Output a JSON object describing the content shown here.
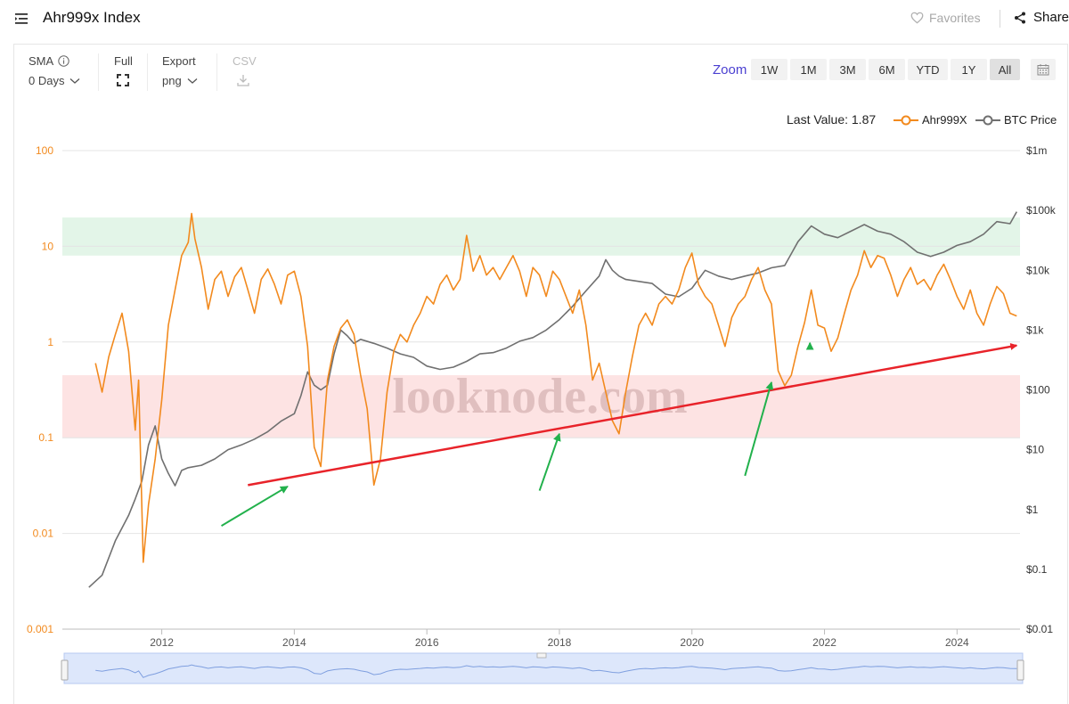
{
  "header": {
    "title": "Ahr999x Index",
    "favorites": "Favorites",
    "share": "Share"
  },
  "toolbar": {
    "sma_label": "SMA",
    "sma_value": "0 Days",
    "full_label": "Full",
    "export_label": "Export",
    "export_value": "png",
    "csv_label": "CSV",
    "zoom_label": "Zoom",
    "zoom_buttons": [
      "1W",
      "1M",
      "3M",
      "6M",
      "YTD",
      "1Y",
      "All"
    ],
    "zoom_active": "All"
  },
  "legend": {
    "last_value": "Last Value: 1.87"
  },
  "watermark": "looknode.com",
  "colors": {
    "ahr999x": "#f28a1e",
    "btc": "#707070",
    "top_zone": "#e3f5e8",
    "bottom_zone": "#fde3e3",
    "trendline": "#e8232a",
    "arrows": "#22b14c",
    "zoom_accent": "#4a3fd1"
  },
  "chart_data": {
    "type": "line",
    "title": "Ahr999x Index",
    "x_ticks": [
      "2012",
      "2014",
      "2016",
      "2018",
      "2020",
      "2022",
      "2024"
    ],
    "y_left_scale": "log",
    "y_left_ticks": [
      "100",
      "10",
      "1",
      "0.1",
      "0.01",
      "0.001"
    ],
    "y_left_range": [
      0.001,
      100
    ],
    "y_right_scale": "log",
    "y_right_ticks": [
      "$1m",
      "$100k",
      "$10k",
      "$1k",
      "$100",
      "$10",
      "$1",
      "$0.1",
      "$0.01"
    ],
    "y_right_range": [
      0.01,
      1000000
    ],
    "zones": [
      {
        "name": "top",
        "from": 8,
        "to": 20,
        "color": "#e3f5e8"
      },
      {
        "name": "bottom",
        "from": 0.1,
        "to": 0.45,
        "color": "#fde3e3"
      }
    ],
    "trendline": {
      "from": [
        "2013.3",
        0.032
      ],
      "to": [
        "2024.9",
        0.92
      ]
    },
    "arrows": [
      {
        "tail": [
          "2012.9",
          0.012
        ],
        "head": [
          "2013.9",
          0.031
        ]
      },
      {
        "tail": [
          "2017.7",
          0.028
        ],
        "head": [
          "2018.0",
          0.11
        ]
      },
      {
        "tail": [
          "2020.8",
          0.04
        ],
        "head": [
          "2021.2",
          0.38
        ]
      },
      {
        "tail": [
          "2021.78",
          0.85
        ],
        "head": [
          "2021.78",
          0.98
        ]
      }
    ],
    "series": [
      {
        "name": "Ahr999X",
        "axis": "left",
        "color": "#f28a1e",
        "last_value": 1.87,
        "points": [
          [
            "2011.0",
            0.6
          ],
          [
            "2011.1",
            0.3
          ],
          [
            "2011.2",
            0.7
          ],
          [
            "2011.3",
            1.2
          ],
          [
            "2011.4",
            2.0
          ],
          [
            "2011.5",
            0.8
          ],
          [
            "2011.6",
            0.12
          ],
          [
            "2011.65",
            0.4
          ],
          [
            "2011.72",
            0.005
          ],
          [
            "2011.8",
            0.02
          ],
          [
            "2011.9",
            0.06
          ],
          [
            "2012.0",
            0.25
          ],
          [
            "2012.1",
            1.5
          ],
          [
            "2012.2",
            3.5
          ],
          [
            "2012.3",
            8.0
          ],
          [
            "2012.4",
            11.0
          ],
          [
            "2012.45",
            22.0
          ],
          [
            "2012.5",
            12.0
          ],
          [
            "2012.6",
            6.0
          ],
          [
            "2012.7",
            2.2
          ],
          [
            "2012.8",
            4.5
          ],
          [
            "2012.9",
            5.5
          ],
          [
            "2013.0",
            3.0
          ],
          [
            "2013.1",
            4.8
          ],
          [
            "2013.2",
            6.0
          ],
          [
            "2013.3",
            3.5
          ],
          [
            "2013.4",
            2.0
          ],
          [
            "2013.5",
            4.5
          ],
          [
            "2013.6",
            5.8
          ],
          [
            "2013.7",
            4.0
          ],
          [
            "2013.8",
            2.5
          ],
          [
            "2013.9",
            5.0
          ],
          [
            "2014.0",
            5.5
          ],
          [
            "2014.1",
            3.0
          ],
          [
            "2014.2",
            0.9
          ],
          [
            "2014.3",
            0.08
          ],
          [
            "2014.4",
            0.05
          ],
          [
            "2014.5",
            0.4
          ],
          [
            "2014.6",
            0.9
          ],
          [
            "2014.7",
            1.4
          ],
          [
            "2014.8",
            1.7
          ],
          [
            "2014.9",
            1.2
          ],
          [
            "2015.0",
            0.45
          ],
          [
            "2015.1",
            0.2
          ],
          [
            "2015.2",
            0.032
          ],
          [
            "2015.3",
            0.06
          ],
          [
            "2015.4",
            0.3
          ],
          [
            "2015.5",
            0.8
          ],
          [
            "2015.6",
            1.2
          ],
          [
            "2015.7",
            1.0
          ],
          [
            "2015.8",
            1.5
          ],
          [
            "2015.9",
            2.0
          ],
          [
            "2016.0",
            3.0
          ],
          [
            "2016.1",
            2.5
          ],
          [
            "2016.2",
            4.0
          ],
          [
            "2016.3",
            5.0
          ],
          [
            "2016.4",
            3.5
          ],
          [
            "2016.5",
            4.5
          ],
          [
            "2016.6",
            13.0
          ],
          [
            "2016.7",
            5.5
          ],
          [
            "2016.8",
            8.0
          ],
          [
            "2016.9",
            5.0
          ],
          [
            "2017.0",
            6.0
          ],
          [
            "2017.1",
            4.5
          ],
          [
            "2017.2",
            6.0
          ],
          [
            "2017.3",
            8.0
          ],
          [
            "2017.4",
            5.5
          ],
          [
            "2017.5",
            3.0
          ],
          [
            "2017.6",
            6.0
          ],
          [
            "2017.7",
            5.0
          ],
          [
            "2017.8",
            3.0
          ],
          [
            "2017.9",
            5.5
          ],
          [
            "2018.0",
            4.5
          ],
          [
            "2018.1",
            3.0
          ],
          [
            "2018.2",
            2.0
          ],
          [
            "2018.3",
            3.5
          ],
          [
            "2018.4",
            1.5
          ],
          [
            "2018.5",
            0.4
          ],
          [
            "2018.6",
            0.6
          ],
          [
            "2018.7",
            0.3
          ],
          [
            "2018.8",
            0.15
          ],
          [
            "2018.9",
            0.11
          ],
          [
            "2019.0",
            0.3
          ],
          [
            "2019.1",
            0.7
          ],
          [
            "2019.2",
            1.5
          ],
          [
            "2019.3",
            2.0
          ],
          [
            "2019.4",
            1.5
          ],
          [
            "2019.5",
            2.5
          ],
          [
            "2019.6",
            3.0
          ],
          [
            "2019.7",
            2.5
          ],
          [
            "2019.8",
            3.5
          ],
          [
            "2019.9",
            6.0
          ],
          [
            "2020.0",
            8.5
          ],
          [
            "2020.1",
            4.0
          ],
          [
            "2020.2",
            3.0
          ],
          [
            "2020.3",
            2.5
          ],
          [
            "2020.4",
            1.5
          ],
          [
            "2020.5",
            0.9
          ],
          [
            "2020.6",
            1.8
          ],
          [
            "2020.7",
            2.5
          ],
          [
            "2020.8",
            3.0
          ],
          [
            "2020.9",
            4.5
          ],
          [
            "2021.0",
            6.0
          ],
          [
            "2021.1",
            3.5
          ],
          [
            "2021.2",
            2.5
          ],
          [
            "2021.3",
            0.5
          ],
          [
            "2021.4",
            0.35
          ],
          [
            "2021.5",
            0.45
          ],
          [
            "2021.6",
            0.9
          ],
          [
            "2021.7",
            1.6
          ],
          [
            "2021.8",
            3.5
          ],
          [
            "2021.9",
            1.5
          ],
          [
            "2022.0",
            1.4
          ],
          [
            "2022.1",
            0.8
          ],
          [
            "2022.2",
            1.1
          ],
          [
            "2022.3",
            2.0
          ],
          [
            "2022.4",
            3.5
          ],
          [
            "2022.5",
            5.0
          ],
          [
            "2022.6",
            9.0
          ],
          [
            "2022.7",
            6.0
          ],
          [
            "2022.8",
            8.0
          ],
          [
            "2022.9",
            7.5
          ],
          [
            "2023.0",
            5.0
          ],
          [
            "2023.1",
            3.0
          ],
          [
            "2023.2",
            4.5
          ],
          [
            "2023.3",
            6.0
          ],
          [
            "2023.4",
            4.0
          ],
          [
            "2023.5",
            4.5
          ],
          [
            "2023.6",
            3.5
          ],
          [
            "2023.7",
            5.0
          ],
          [
            "2023.8",
            6.5
          ],
          [
            "2023.9",
            4.5
          ],
          [
            "2024.0",
            3.0
          ],
          [
            "2024.1",
            2.2
          ],
          [
            "2024.2",
            3.5
          ],
          [
            "2024.3",
            2.0
          ],
          [
            "2024.4",
            1.5
          ],
          [
            "2024.5",
            2.5
          ],
          [
            "2024.6",
            3.8
          ],
          [
            "2024.7",
            3.2
          ],
          [
            "2024.8",
            2.0
          ],
          [
            "2024.9",
            1.87
          ]
        ]
      },
      {
        "name": "BTC Price",
        "axis": "right",
        "color": "#707070",
        "points": [
          [
            "2010.9",
            0.05
          ],
          [
            "2011.1",
            0.08
          ],
          [
            "2011.3",
            0.3
          ],
          [
            "2011.5",
            0.8
          ],
          [
            "2011.6",
            1.5
          ],
          [
            "2011.7",
            3.0
          ],
          [
            "2011.8",
            12.0
          ],
          [
            "2011.9",
            25.0
          ],
          [
            "2012.0",
            7.0
          ],
          [
            "2012.1",
            4.0
          ],
          [
            "2012.2",
            2.5
          ],
          [
            "2012.3",
            4.5
          ],
          [
            "2012.4",
            5.0
          ],
          [
            "2012.6",
            5.5
          ],
          [
            "2012.8",
            7.0
          ],
          [
            "2013.0",
            10.0
          ],
          [
            "2013.2",
            12.0
          ],
          [
            "2013.4",
            15.0
          ],
          [
            "2013.6",
            20.0
          ],
          [
            "2013.8",
            30.0
          ],
          [
            "2014.0",
            40.0
          ],
          [
            "2014.1",
            80.0
          ],
          [
            "2014.2",
            200.0
          ],
          [
            "2014.3",
            120.0
          ],
          [
            "2014.4",
            100.0
          ],
          [
            "2014.5",
            120.0
          ],
          [
            "2014.6",
            400.0
          ],
          [
            "2014.7",
            1000.0
          ],
          [
            "2014.8",
            800.0
          ],
          [
            "2014.9",
            600.0
          ],
          [
            "2015.0",
            700.0
          ],
          [
            "2015.2",
            600.0
          ],
          [
            "2015.4",
            500.0
          ],
          [
            "2015.6",
            400.0
          ],
          [
            "2015.8",
            350.0
          ],
          [
            "2016.0",
            250.0
          ],
          [
            "2016.2",
            220.0
          ],
          [
            "2016.4",
            240.0
          ],
          [
            "2016.6",
            300.0
          ],
          [
            "2016.8",
            400.0
          ],
          [
            "2017.0",
            420.0
          ],
          [
            "2017.2",
            500.0
          ],
          [
            "2017.4",
            650.0
          ],
          [
            "2017.6",
            750.0
          ],
          [
            "2017.8",
            1000.0
          ],
          [
            "2018.0",
            1500.0
          ],
          [
            "2018.2",
            2500.0
          ],
          [
            "2018.4",
            4500.0
          ],
          [
            "2018.6",
            8000.0
          ],
          [
            "2018.7",
            15000.0
          ],
          [
            "2018.8",
            10000.0
          ],
          [
            "2018.9",
            8000.0
          ],
          [
            "2019.0",
            7000.0
          ],
          [
            "2019.2",
            6500.0
          ],
          [
            "2019.4",
            6000.0
          ],
          [
            "2019.6",
            4000.0
          ],
          [
            "2019.8",
            3600.0
          ],
          [
            "2020.0",
            5000.0
          ],
          [
            "2020.2",
            10000.0
          ],
          [
            "2020.4",
            8000.0
          ],
          [
            "2020.6",
            7000.0
          ],
          [
            "2020.8",
            8000.0
          ],
          [
            "2021.0",
            9000.0
          ],
          [
            "2021.2",
            11000.0
          ],
          [
            "2021.4",
            12000.0
          ],
          [
            "2021.6",
            30000.0
          ],
          [
            "2021.8",
            55000.0
          ],
          [
            "2022.0",
            40000.0
          ],
          [
            "2022.2",
            35000.0
          ],
          [
            "2022.4",
            45000.0
          ],
          [
            "2022.6",
            58000.0
          ],
          [
            "2022.8",
            45000.0
          ],
          [
            "2023.0",
            40000.0
          ],
          [
            "2023.2",
            30000.0
          ],
          [
            "2023.4",
            20000.0
          ],
          [
            "2023.6",
            17000.0
          ],
          [
            "2023.8",
            20000.0
          ],
          [
            "2024.0",
            26000.0
          ],
          [
            "2024.2",
            30000.0
          ],
          [
            "2024.4",
            40000.0
          ],
          [
            "2024.6",
            65000.0
          ],
          [
            "2024.8",
            60000.0
          ],
          [
            "2024.9",
            95000.0
          ]
        ]
      }
    ],
    "navigator": "full-range"
  }
}
